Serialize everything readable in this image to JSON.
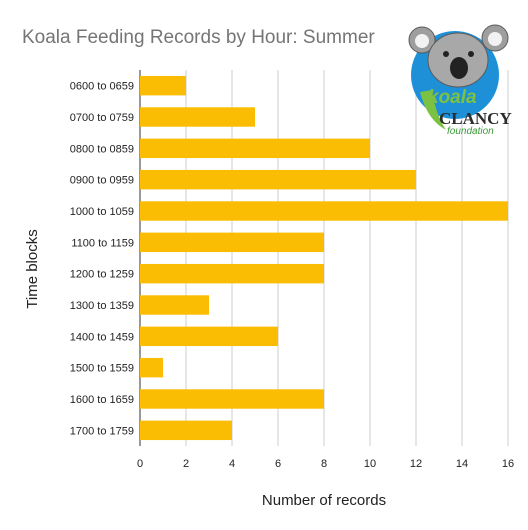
{
  "chart_data": {
    "type": "bar",
    "orientation": "horizontal",
    "title": "Koala Feeding Records by Hour: Summer",
    "xlabel": "Number of records",
    "ylabel": "Time blocks",
    "categories": [
      "0600 to 0659",
      "0700 to 0759",
      "0800 to 0859",
      "0900 to 0959",
      "1000 to 1059",
      "1100 to 1159",
      "1200 to 1259",
      "1300 to 1359",
      "1400 to 1459",
      "1500 to 1559",
      "1600 to 1659",
      "1700 to 1759"
    ],
    "values": [
      2,
      5,
      10,
      12,
      16,
      8,
      8,
      3,
      6,
      1,
      8,
      4
    ],
    "xlim": [
      0,
      16
    ],
    "xticks": [
      "0",
      "2",
      "4",
      "6",
      "8",
      "10",
      "12",
      "14",
      "16"
    ],
    "grid": true,
    "bar_color": "#fbbc04",
    "grid_color": "#cccccc"
  },
  "logo": {
    "word": "koala",
    "name": "CLANCY",
    "sub": "foundation",
    "colors": {
      "circle": "#1e90d8",
      "leaf": "#7cc242",
      "text": "#2c2c2c",
      "sub": "#3a9a3a"
    }
  }
}
